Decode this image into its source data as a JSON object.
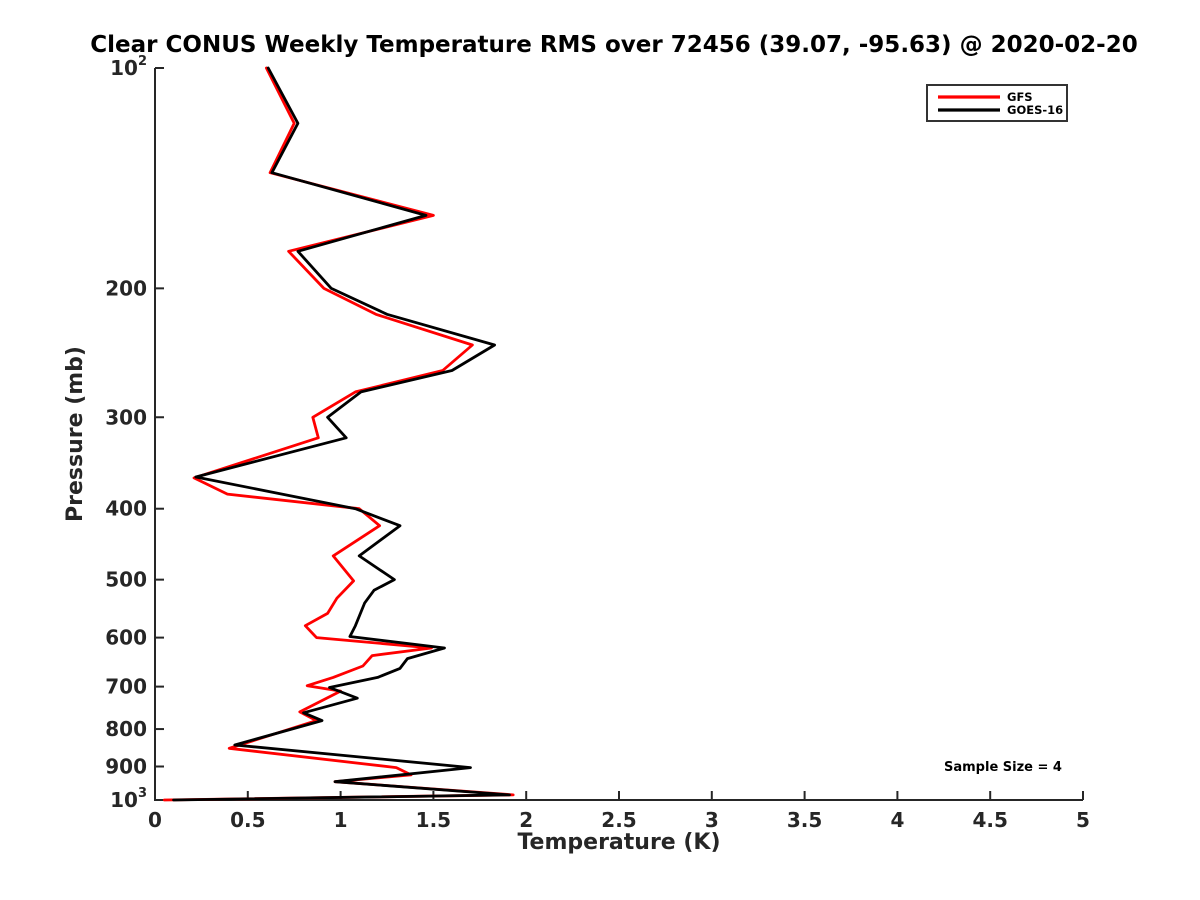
{
  "title": "Clear CONUS Weekly Temperature RMS over 72456 (39.07, -95.63) @ 2020-02-20",
  "annotations": {
    "sample_size": "Sample Size = 4"
  },
  "legend": {
    "position": "top-right",
    "items": [
      {
        "label": "GFS",
        "color": "#ff0000"
      },
      {
        "label": "GOES-16",
        "color": "#000000"
      }
    ]
  },
  "colors": {
    "axis": "#262626",
    "background": "#ffffff",
    "gfs": "#ff0000",
    "goes16": "#000000"
  },
  "chart_data": {
    "type": "line",
    "title": "Clear CONUS Weekly Temperature RMS over 72456 (39.07, -95.63) @ 2020-02-20",
    "xlabel": "Temperature (K)",
    "ylabel": "Pressure (mb)",
    "xlim": [
      0,
      5
    ],
    "ylim": [
      100,
      1000
    ],
    "x_scale": "linear",
    "y_scale": "log10-increasing-downward",
    "grid": false,
    "x_ticks": [
      "0",
      "0.5",
      "1",
      "1.5",
      "2",
      "2.5",
      "3",
      "3.5",
      "4",
      "4.5",
      "5"
    ],
    "y_ticks": [
      {
        "value": 100,
        "label": "10^2"
      },
      {
        "value": 200,
        "label": "200"
      },
      {
        "value": 300,
        "label": "300"
      },
      {
        "value": 400,
        "label": "400"
      },
      {
        "value": 500,
        "label": "500"
      },
      {
        "value": 600,
        "label": "600"
      },
      {
        "value": 700,
        "label": "700"
      },
      {
        "value": 800,
        "label": "800"
      },
      {
        "value": 900,
        "label": "900"
      },
      {
        "value": 1000,
        "label": "10^3"
      }
    ],
    "series": [
      {
        "name": "GFS",
        "color": "#ff0000",
        "points_format": "[temperature_rms_K, pressure_mb]",
        "points": [
          [
            0.6,
            100
          ],
          [
            0.75,
            119
          ],
          [
            0.62,
            139
          ],
          [
            1.5,
            159
          ],
          [
            0.72,
            178
          ],
          [
            0.91,
            200
          ],
          [
            1.19,
            217
          ],
          [
            1.71,
            239
          ],
          [
            1.55,
            259
          ],
          [
            1.08,
            277
          ],
          [
            0.85,
            300
          ],
          [
            0.88,
            320
          ],
          [
            0.21,
            363
          ],
          [
            0.39,
            382
          ],
          [
            1.1,
            400
          ],
          [
            1.21,
            422
          ],
          [
            0.96,
            464
          ],
          [
            1.07,
            502
          ],
          [
            0.98,
            530
          ],
          [
            0.93,
            556
          ],
          [
            0.81,
            578
          ],
          [
            0.87,
            600
          ],
          [
            1.49,
            620
          ],
          [
            1.17,
            635
          ],
          [
            1.12,
            656
          ],
          [
            0.96,
            680
          ],
          [
            0.82,
            698
          ],
          [
            1.0,
            710
          ],
          [
            0.78,
            758
          ],
          [
            0.87,
            779
          ],
          [
            0.4,
            850
          ],
          [
            1.3,
            903
          ],
          [
            1.38,
            924
          ],
          [
            0.97,
            944
          ],
          [
            1.93,
            984
          ],
          [
            0.05,
            1000
          ]
        ]
      },
      {
        "name": "GOES-16",
        "color": "#000000",
        "points_format": "[temperature_rms_K, pressure_mb]",
        "points": [
          [
            0.61,
            100
          ],
          [
            0.77,
            119
          ],
          [
            0.63,
            139
          ],
          [
            1.46,
            159
          ],
          [
            0.77,
            178
          ],
          [
            0.95,
            200
          ],
          [
            1.25,
            217
          ],
          [
            1.83,
            239
          ],
          [
            1.6,
            259
          ],
          [
            1.11,
            277
          ],
          [
            0.93,
            300
          ],
          [
            1.03,
            320
          ],
          [
            0.22,
            362
          ],
          [
            1.08,
            400
          ],
          [
            1.32,
            422
          ],
          [
            1.1,
            464
          ],
          [
            1.29,
            500
          ],
          [
            1.18,
            517
          ],
          [
            1.13,
            538
          ],
          [
            1.08,
            578
          ],
          [
            1.05,
            598
          ],
          [
            1.56,
            620
          ],
          [
            1.36,
            641
          ],
          [
            1.32,
            661
          ],
          [
            1.2,
            680
          ],
          [
            0.94,
            702
          ],
          [
            1.09,
            726
          ],
          [
            0.8,
            760
          ],
          [
            0.9,
            779
          ],
          [
            0.43,
            841
          ],
          [
            1.7,
            903
          ],
          [
            0.97,
            944
          ],
          [
            1.91,
            984
          ],
          [
            0.1,
            1000
          ]
        ]
      }
    ]
  }
}
